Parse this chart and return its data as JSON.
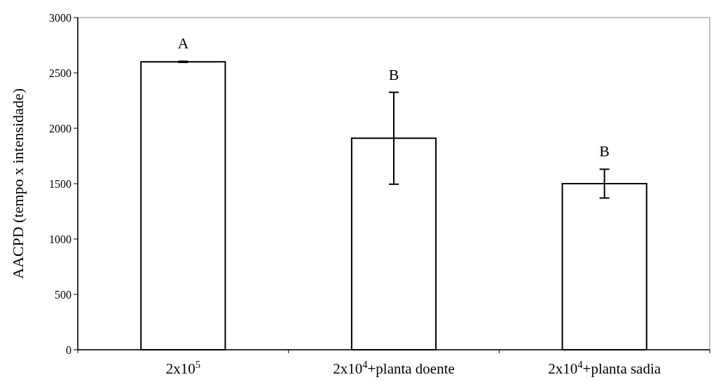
{
  "chart_data": {
    "type": "bar",
    "ylabel": "AACPD (tempo x intensidade)",
    "categories": [
      "2x10$^{5}$",
      "2x10$^{4}$+planta doente",
      "2x10$^{4}$+planta sadia"
    ],
    "values": [
      2600,
      1910,
      1500
    ],
    "errors": [
      5,
      415,
      130
    ],
    "color": "#ffffff",
    "ylim": [
      0,
      3000
    ],
    "yticks": [
      0,
      500,
      1000,
      1500,
      2000,
      2500,
      3000
    ],
    "grid": false,
    "annotations": [
      "A",
      "B",
      "B"
    ]
  }
}
